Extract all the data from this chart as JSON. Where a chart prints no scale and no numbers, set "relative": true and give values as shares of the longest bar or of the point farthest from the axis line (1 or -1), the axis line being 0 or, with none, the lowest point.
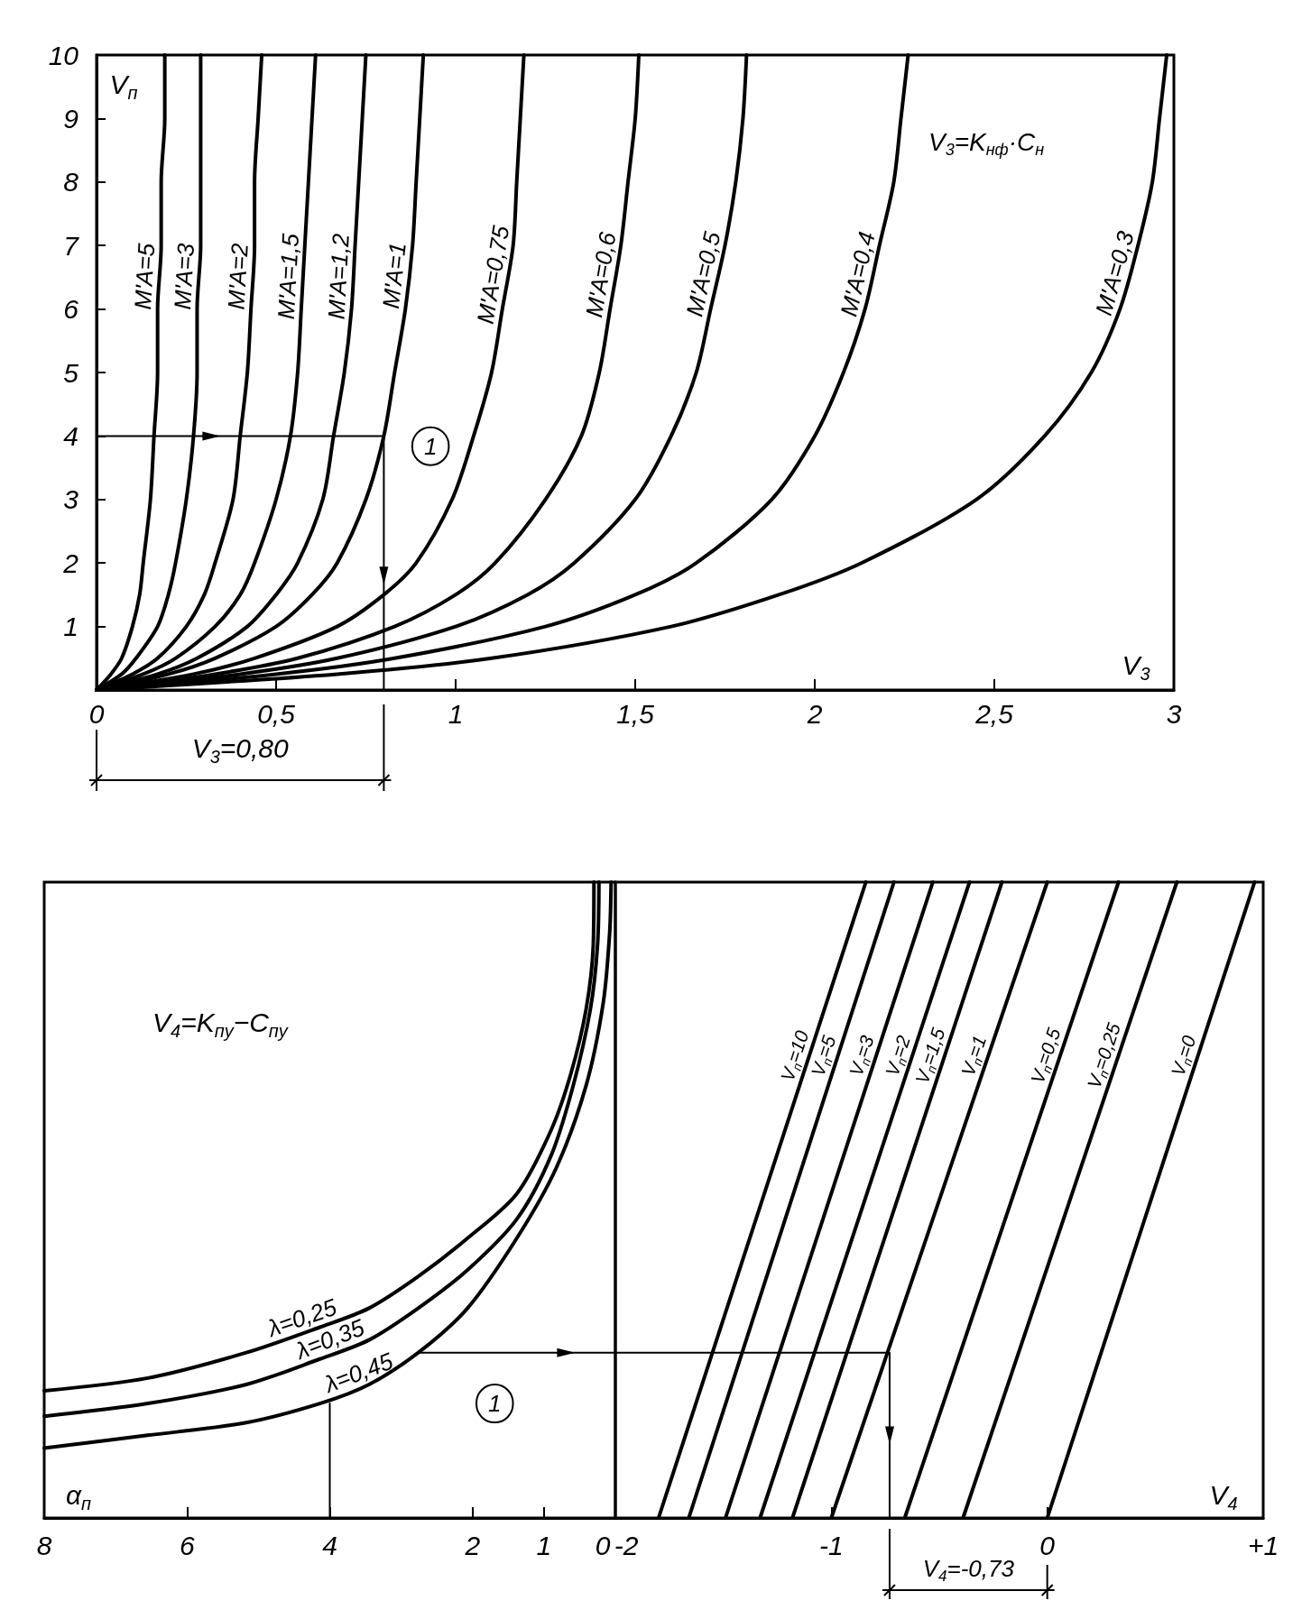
{
  "chart_data": [
    {
      "type": "line",
      "xlabel": "V$_{3}$",
      "ylabel": "V$_{п}$",
      "xlim": [
        0,
        3
      ],
      "ylim": [
        0,
        10
      ],
      "xticks": [
        0,
        {
          "value": 0.5,
          "label": "0,5"
        },
        1,
        {
          "value": 1.5,
          "label": "1,5"
        },
        2,
        {
          "value": 2.5,
          "label": "2,5"
        },
        3
      ],
      "yticks": [
        {
          "value": 0,
          "label": null
        },
        1,
        2,
        3,
        4,
        5,
        6,
        7,
        8,
        9,
        10
      ],
      "grid": false,
      "marker": "none",
      "annotations": [
        "V$_{3}$=K$_{нф}$·C$_{н}$",
        {
          "text": "1",
          "x": 0.93,
          "y": 3.84
        },
        "V$_{3}$=0,80"
      ],
      "series": [
        {
          "name": "M'A=5",
          "color": "#000000",
          "x": [
            0,
            0.04,
            0.07,
            0.1,
            0.12,
            0.13,
            0.15,
            0.16,
            0.17,
            0.17,
            0.18,
            0.18,
            0.19,
            0.19
          ],
          "values": [
            0,
            0.25,
            0.5,
            1,
            1.5,
            2,
            3,
            4,
            5,
            6,
            7,
            8,
            9,
            10
          ]
        },
        {
          "name": "M'A=3",
          "color": "#000000",
          "x": [
            0,
            0.07,
            0.11,
            0.17,
            0.2,
            0.22,
            0.25,
            0.27,
            0.28,
            0.28,
            0.29,
            0.29,
            0.29,
            0.29
          ],
          "values": [
            0,
            0.25,
            0.5,
            1,
            1.5,
            2,
            3,
            4,
            5,
            6,
            7,
            8,
            9,
            10
          ]
        },
        {
          "name": "M'A=2",
          "color": "#000000",
          "x": [
            0,
            0.1,
            0.17,
            0.25,
            0.3,
            0.33,
            0.38,
            0.4,
            0.42,
            0.43,
            0.44,
            0.44,
            0.45,
            0.46
          ],
          "values": [
            0,
            0.25,
            0.5,
            1,
            1.5,
            2,
            3,
            4,
            5,
            6,
            7,
            8,
            9,
            10
          ]
        },
        {
          "name": "M'A=1,5",
          "color": "#000000",
          "x": [
            0,
            0.13,
            0.22,
            0.33,
            0.4,
            0.44,
            0.5,
            0.54,
            0.56,
            0.57,
            0.58,
            0.59,
            0.6,
            0.61
          ],
          "values": [
            0,
            0.25,
            0.5,
            1,
            1.5,
            2,
            3,
            4,
            5,
            6,
            7,
            8,
            9,
            10
          ]
        },
        {
          "name": "M'A=1,2",
          "color": "#000000",
          "x": [
            0,
            0.17,
            0.28,
            0.42,
            0.5,
            0.56,
            0.63,
            0.66,
            0.69,
            0.71,
            0.72,
            0.73,
            0.74,
            0.75
          ],
          "values": [
            0,
            0.25,
            0.5,
            1,
            1.5,
            2,
            3,
            4,
            5,
            6,
            7,
            8,
            9,
            10
          ]
        },
        {
          "name": "M'A=1",
          "color": "#000000",
          "x": [
            0,
            0.2,
            0.33,
            0.5,
            0.6,
            0.67,
            0.75,
            0.8,
            0.83,
            0.86,
            0.88,
            0.89,
            0.9,
            0.91
          ],
          "values": [
            0,
            0.25,
            0.5,
            1,
            1.5,
            2,
            3,
            4,
            5,
            6,
            7,
            8,
            9,
            10
          ]
        },
        {
          "name": "M'A=0,75",
          "color": "#000000",
          "x": [
            0,
            0.27,
            0.44,
            0.67,
            0.8,
            0.89,
            0.99,
            1.05,
            1.1,
            1.13,
            1.16,
            1.17,
            1.18,
            1.19
          ],
          "values": [
            0,
            0.25,
            0.5,
            1,
            1.5,
            2,
            3,
            4,
            5,
            6,
            7,
            8,
            9,
            10
          ]
        },
        {
          "name": "M'A=0,6",
          "color": "#000000",
          "x": [
            0,
            0.33,
            0.56,
            0.83,
            1,
            1.11,
            1.25,
            1.35,
            1.4,
            1.43,
            1.46,
            1.48,
            1.5,
            1.51
          ],
          "values": [
            0,
            0.25,
            0.5,
            1,
            1.5,
            2,
            3,
            4,
            5,
            6,
            7,
            8,
            9,
            10
          ]
        },
        {
          "name": "M'A=0,5",
          "color": "#000000",
          "x": [
            0,
            0.4,
            0.67,
            1,
            1.2,
            1.33,
            1.5,
            1.6,
            1.67,
            1.71,
            1.75,
            1.78,
            1.8,
            1.81
          ],
          "values": [
            0,
            0.25,
            0.5,
            1,
            1.5,
            2,
            3,
            4,
            5,
            6,
            7,
            8,
            9,
            10
          ]
        },
        {
          "name": "M'A=0,4",
          "color": "#000000",
          "x": [
            0,
            0.5,
            0.83,
            1.25,
            1.5,
            1.67,
            1.88,
            2,
            2.08,
            2.14,
            2.18,
            2.22,
            2.24,
            2.26
          ],
          "values": [
            0,
            0.25,
            0.5,
            1,
            1.5,
            2,
            3,
            4,
            5,
            6,
            7,
            8,
            9,
            10
          ]
        },
        {
          "name": "M'A=0,3",
          "color": "#000000",
          "x": [
            0,
            0.67,
            1.1,
            1.6,
            1.9,
            2.13,
            2.45,
            2.64,
            2.77,
            2.85,
            2.9,
            2.94,
            2.96,
            2.98
          ],
          "values": [
            0,
            0.25,
            0.5,
            1,
            1.5,
            2,
            3,
            4,
            5,
            6,
            7,
            8,
            9,
            10
          ]
        },
        {
          "color": "#000000",
          "x": [
            0,
            0.8,
            0.8
          ],
          "values": [
            4,
            4,
            0
          ]
        }
      ]
    },
    {
      "type": "line",
      "relative": true,
      "xlabel": "α$_{п}$",
      "xlim": [
        8,
        0
      ],
      "xticks": [
        8,
        6,
        4,
        2,
        1,
        0
      ],
      "grid": false,
      "marker": "none",
      "annotations": [
        "V$_{4}$=K$_{пу}$−C$_{пу}$",
        {
          "text": "1",
          "x": 1.69,
          "y": 0.18
        }
      ],
      "series": [
        {
          "name": "λ=0,25",
          "color": "#000000",
          "x": [
            8,
            6.55,
            5.17,
            4.14,
            3.45,
            2.76,
            2.07,
            1.38,
            0.9,
            0.62,
            0.41,
            0.31,
            0.3
          ],
          "values": [
            0.2,
            0.22,
            0.26,
            0.3,
            0.33,
            0.38,
            0.44,
            0.51,
            0.61,
            0.7,
            0.8,
            0.9,
            1
          ]
        },
        {
          "name": "λ=0,35",
          "color": "#000000",
          "x": [
            8,
            6.55,
            5.17,
            4.14,
            3.45,
            2.76,
            2.07,
            1.38,
            0.9,
            0.59,
            0.35,
            0.25,
            0.23
          ],
          "values": [
            0.16,
            0.18,
            0.21,
            0.25,
            0.28,
            0.33,
            0.39,
            0.47,
            0.57,
            0.68,
            0.8,
            0.9,
            1
          ]
        },
        {
          "name": "λ=0,45",
          "color": "#000000",
          "x": [
            8,
            6.55,
            5.17,
            4.14,
            3.45,
            2.76,
            2.07,
            1.38,
            0.83,
            0.41,
            0.17,
            0.08,
            0.06
          ],
          "values": [
            0.11,
            0.13,
            0.15,
            0.18,
            0.21,
            0.26,
            0.33,
            0.44,
            0.55,
            0.68,
            0.81,
            0.92,
            1
          ]
        },
        {
          "color": "#000000",
          "x": [
            4,
            4
          ],
          "values": [
            0,
            0.18
          ]
        },
        {
          "color": "#000000",
          "x": [
            2.76,
            0
          ],
          "values": [
            0.26,
            0.26
          ]
        }
      ]
    },
    {
      "type": "line",
      "relative": true,
      "xlabel": "V$_{4}$",
      "xlim": [
        -2,
        1
      ],
      "xticks": [
        -2,
        -1,
        0,
        {
          "value": 1,
          "label": "+1"
        }
      ],
      "grid": false,
      "marker": "none",
      "annotations": [
        "V$_{4}$=-0,73"
      ],
      "series": [
        {
          "name": "V$_{п}$=10",
          "color": "#000000",
          "x": [
            -1.8,
            -0.84
          ],
          "values": [
            0,
            1
          ]
        },
        {
          "name": "V$_{п}$=5",
          "color": "#000000",
          "x": [
            -1.66,
            -0.71
          ],
          "values": [
            0,
            1
          ]
        },
        {
          "name": "V$_{п}$=3",
          "color": "#000000",
          "x": [
            -1.49,
            -0.53
          ],
          "values": [
            0,
            1
          ]
        },
        {
          "name": "V$_{п}$=2",
          "color": "#000000",
          "x": [
            -1.33,
            -0.36
          ],
          "values": [
            0,
            1
          ]
        },
        {
          "name": "V$_{п}$=1,5",
          "color": "#000000",
          "x": [
            -1.18,
            -0.21
          ],
          "values": [
            0,
            1
          ]
        },
        {
          "name": "V$_{п}$=1",
          "color": "#000000",
          "x": [
            -1,
            0
          ],
          "values": [
            0,
            1
          ]
        },
        {
          "name": "V$_{п}$=0,5",
          "color": "#000000",
          "x": [
            -0.66,
            0.33
          ],
          "values": [
            0,
            1
          ]
        },
        {
          "name": "V$_{п}$=0,25",
          "color": "#000000",
          "x": [
            -0.39,
            0.6
          ],
          "values": [
            0,
            1
          ]
        },
        {
          "name": "V$_{п}$=0",
          "color": "#000000",
          "x": [
            0,
            0.96
          ],
          "values": [
            0,
            1
          ]
        },
        {
          "color": "#000000",
          "x": [
            -2,
            -0.73,
            -0.73
          ],
          "values": [
            0.26,
            0.26,
            0
          ]
        }
      ]
    }
  ]
}
